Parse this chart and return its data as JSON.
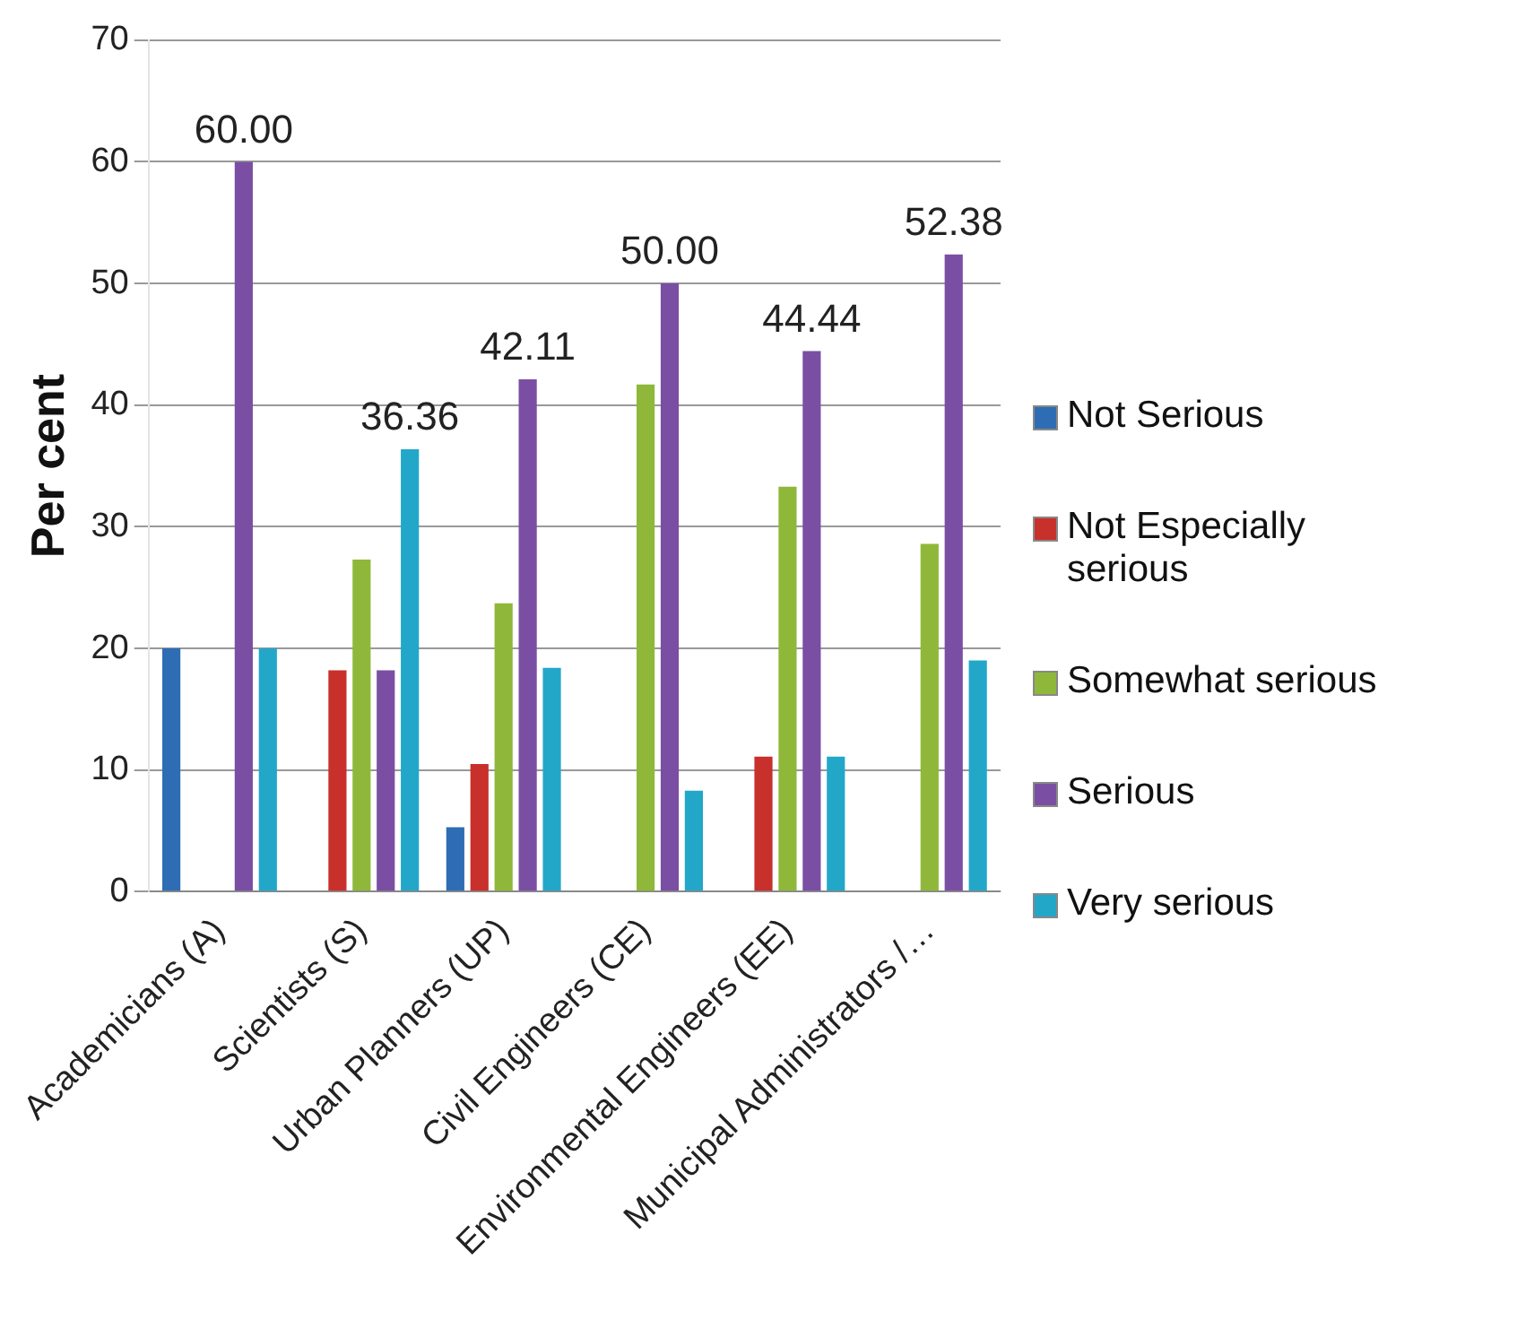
{
  "chart_data": {
    "type": "bar",
    "ylabel": "Per cent",
    "categories": [
      "Academicians (A)",
      "Scientists (S)",
      "Urban Planners (UP)",
      "Civil Engineers (CE)",
      "Environmental Engineers (EE)",
      "Municipal Administrators /…"
    ],
    "series": [
      {
        "name": "Not Serious",
        "color": "#2e6db4",
        "values": [
          20,
          0,
          5.3,
          0,
          0,
          0
        ]
      },
      {
        "name": "Not Especially serious",
        "color": "#c8302c",
        "values": [
          0,
          18.2,
          10.5,
          0,
          11.1,
          0
        ]
      },
      {
        "name": "Somewhat serious",
        "color": "#8fb83a",
        "values": [
          0,
          27.3,
          23.7,
          41.7,
          33.3,
          28.6
        ]
      },
      {
        "name": "Serious",
        "color": "#7a4fa3",
        "values": [
          60,
          18.2,
          42.11,
          50,
          44.44,
          52.38
        ],
        "value_labels": [
          "60.00",
          null,
          "42.11",
          "50.00",
          "44.44",
          "52.38"
        ]
      },
      {
        "name": "Very serious",
        "color": "#22a7c9",
        "values": [
          20,
          36.36,
          18.4,
          8.3,
          11.1,
          19
        ],
        "value_labels": [
          null,
          "36.36",
          null,
          null,
          null,
          null
        ]
      }
    ],
    "ylim": [
      0,
      70
    ],
    "yticks": [
      0,
      10,
      20,
      30,
      40,
      50,
      60,
      70
    ],
    "grid": "y",
    "legend": "right"
  }
}
